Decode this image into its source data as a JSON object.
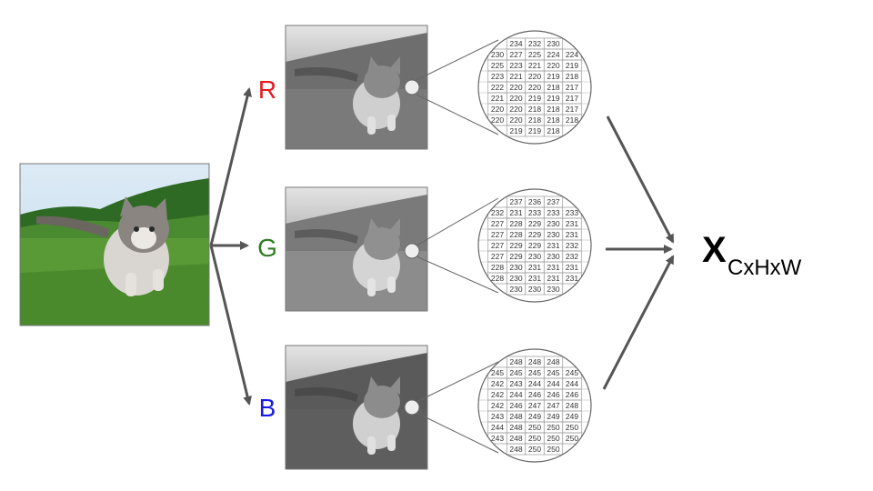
{
  "channels": [
    {
      "letter": "R",
      "color": "#e8191f",
      "grid": [
        [
          "234",
          "232",
          "230"
        ],
        [
          "230",
          "227",
          "225",
          "224",
          "224"
        ],
        [
          "225",
          "223",
          "221",
          "220",
          "219"
        ],
        [
          "223",
          "221",
          "220",
          "219",
          "218"
        ],
        [
          "222",
          "220",
          "220",
          "218",
          "217"
        ],
        [
          "221",
          "220",
          "219",
          "219",
          "217"
        ],
        [
          "220",
          "220",
          "218",
          "218",
          "217"
        ],
        [
          "220",
          "220",
          "218",
          "218",
          "218"
        ],
        [
          "219",
          "219",
          "218"
        ]
      ]
    },
    {
      "letter": "G",
      "color": "#2e7d1f",
      "grid": [
        [
          "237",
          "236",
          "237"
        ],
        [
          "232",
          "231",
          "233",
          "233",
          "233"
        ],
        [
          "227",
          "228",
          "229",
          "230",
          "231"
        ],
        [
          "227",
          "228",
          "229",
          "230",
          "231"
        ],
        [
          "227",
          "229",
          "229",
          "231",
          "232"
        ],
        [
          "227",
          "229",
          "230",
          "230",
          "232"
        ],
        [
          "228",
          "230",
          "231",
          "231",
          "231"
        ],
        [
          "228",
          "230",
          "231",
          "231",
          "231"
        ],
        [
          "230",
          "230",
          "230"
        ]
      ]
    },
    {
      "letter": "B",
      "color": "#1a1ae6",
      "grid": [
        [
          "248",
          "248",
          "248"
        ],
        [
          "245",
          "245",
          "245",
          "245",
          "245"
        ],
        [
          "242",
          "243",
          "244",
          "244",
          "244"
        ],
        [
          "242",
          "244",
          "246",
          "246",
          "246"
        ],
        [
          "242",
          "246",
          "247",
          "247",
          "248"
        ],
        [
          "243",
          "248",
          "249",
          "249",
          "249"
        ],
        [
          "244",
          "248",
          "250",
          "250",
          "250"
        ],
        [
          "243",
          "248",
          "250",
          "250",
          "250"
        ],
        [
          "248",
          "250",
          "250"
        ]
      ]
    }
  ],
  "result": {
    "symbol": "X",
    "subscript": "CxHxW"
  },
  "colors": {
    "arrow": "#555555",
    "sky": "#cfe3f2",
    "grass": "#5a9a36",
    "trees": "#2f6a24"
  }
}
